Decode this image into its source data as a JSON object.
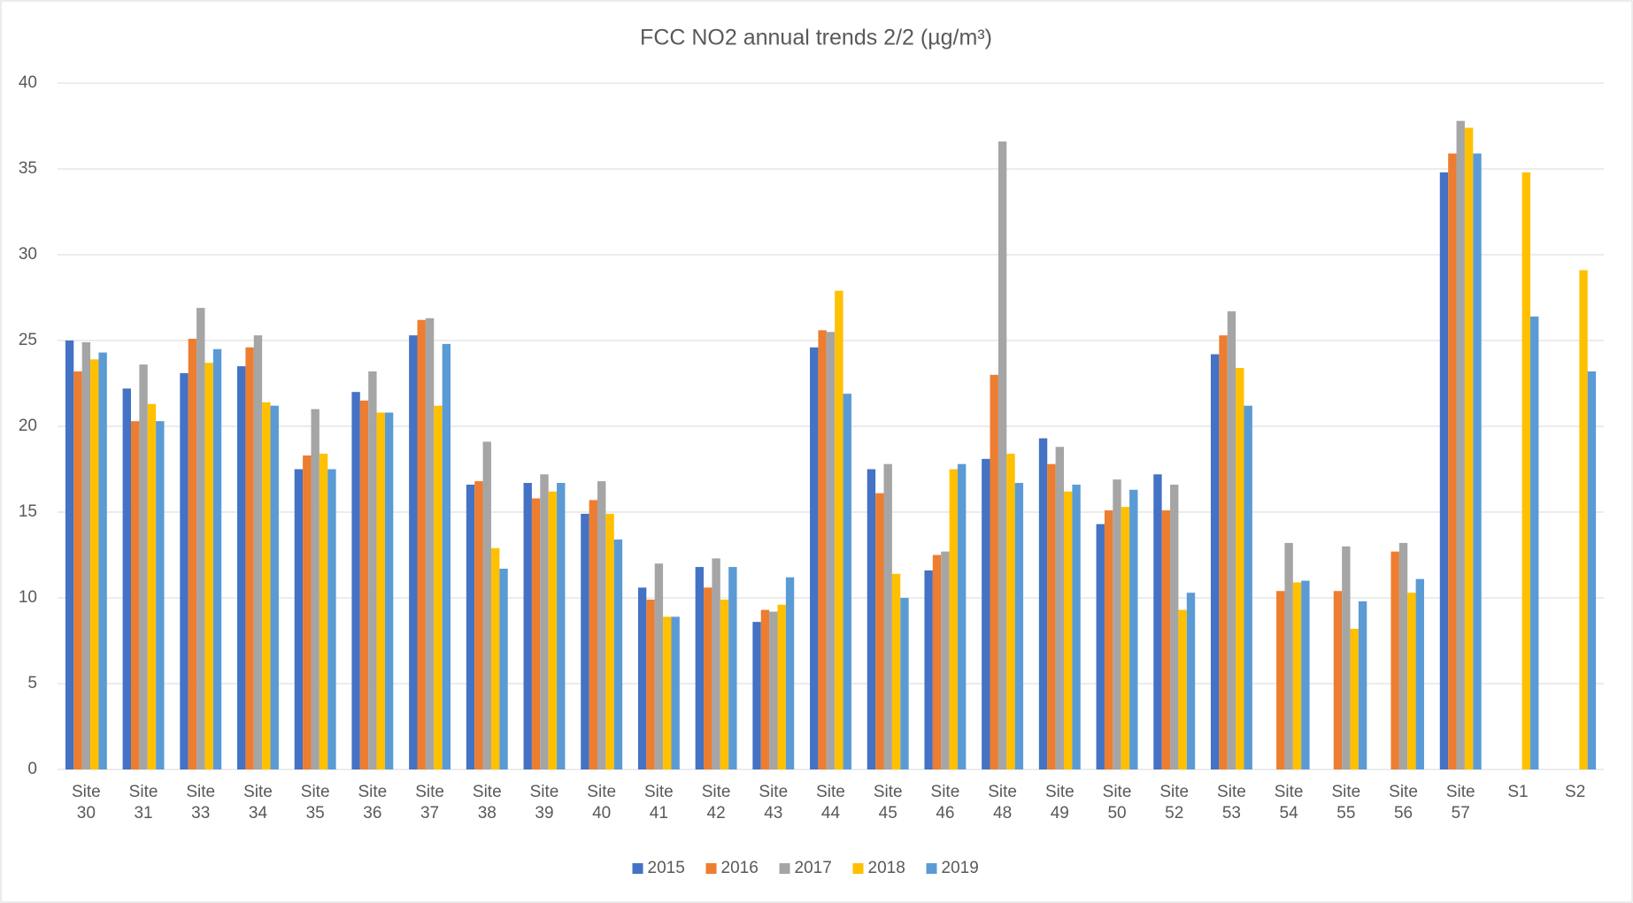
{
  "chart_data": {
    "type": "bar",
    "title": "FCC NO2 annual trends 2/2 (µg/m³)",
    "categories": [
      "Site 30",
      "Site 31",
      "Site 33",
      "Site 34",
      "Site 35",
      "Site 36",
      "Site 37",
      "Site 38",
      "Site 39",
      "Site 40",
      "Site 41",
      "Site 42",
      "Site 43",
      "Site 44",
      "Site 45",
      "Site 46",
      "Site 48",
      "Site 49",
      "Site 50",
      "Site 52",
      "Site 53",
      "Site 54",
      "Site 55",
      "Site 56",
      "Site 57",
      "S1",
      "S2"
    ],
    "series": [
      {
        "name": "2015",
        "color": "#4472c4",
        "values": [
          25.0,
          22.2,
          23.1,
          23.5,
          17.5,
          22.0,
          25.3,
          16.6,
          16.7,
          14.9,
          10.6,
          11.8,
          8.6,
          24.6,
          17.5,
          11.6,
          18.1,
          19.3,
          14.3,
          17.2,
          24.2,
          null,
          null,
          null,
          34.8,
          null,
          null
        ]
      },
      {
        "name": "2016",
        "color": "#ed7d31",
        "values": [
          23.2,
          20.3,
          25.1,
          24.6,
          18.3,
          21.5,
          26.2,
          16.8,
          15.8,
          15.7,
          9.9,
          10.6,
          9.3,
          25.6,
          16.1,
          12.5,
          23.0,
          17.8,
          15.1,
          15.1,
          25.3,
          10.4,
          10.4,
          12.7,
          35.9,
          null,
          null
        ]
      },
      {
        "name": "2017",
        "color": "#a5a5a5",
        "values": [
          24.9,
          23.6,
          26.9,
          25.3,
          21.0,
          23.2,
          26.3,
          19.1,
          17.2,
          16.8,
          12.0,
          12.3,
          9.2,
          25.5,
          17.8,
          12.7,
          36.6,
          18.8,
          16.9,
          16.6,
          26.7,
          13.2,
          13.0,
          13.2,
          37.8,
          null,
          null
        ]
      },
      {
        "name": "2018",
        "color": "#ffc000",
        "values": [
          23.9,
          21.3,
          23.7,
          21.4,
          18.4,
          20.8,
          21.2,
          12.9,
          16.2,
          14.9,
          8.9,
          9.9,
          9.6,
          27.9,
          11.4,
          17.5,
          18.4,
          16.2,
          15.3,
          9.3,
          23.4,
          10.9,
          8.2,
          10.3,
          37.4,
          34.8,
          29.1
        ]
      },
      {
        "name": "2019",
        "color": "#5b9bd5",
        "values": [
          24.3,
          20.3,
          24.5,
          21.2,
          17.5,
          20.8,
          24.8,
          11.7,
          16.7,
          13.4,
          8.9,
          11.8,
          11.2,
          21.9,
          10.0,
          17.8,
          16.7,
          16.6,
          16.3,
          10.3,
          21.2,
          11.0,
          9.8,
          11.1,
          35.9,
          26.4,
          23.2
        ]
      }
    ],
    "ylim": [
      0,
      40
    ],
    "yticks": [
      0,
      5,
      10,
      15,
      20,
      25,
      30,
      35,
      40
    ],
    "grid": true,
    "legend": "bottom"
  }
}
